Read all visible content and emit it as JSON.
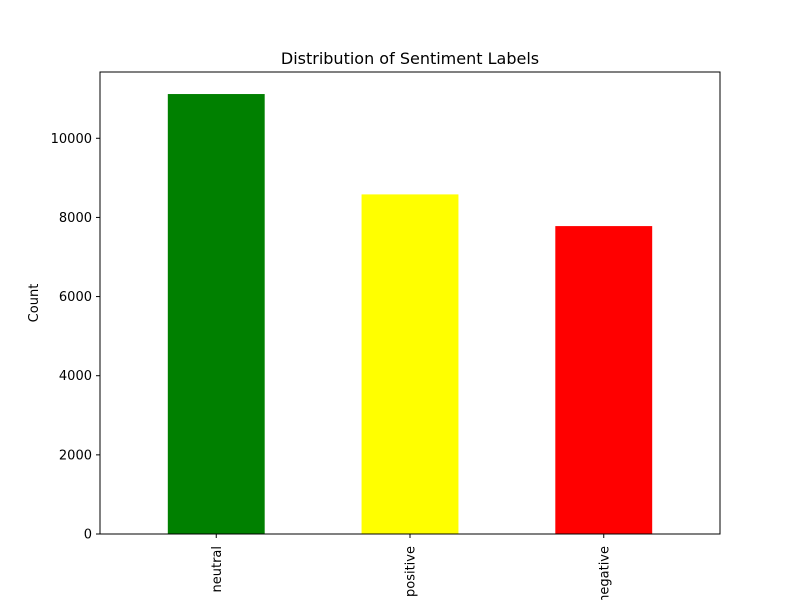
{
  "chart_data": {
    "type": "bar",
    "title": "Distribution of Sentiment Labels",
    "xlabel": "",
    "ylabel": "Count",
    "categories": [
      "neutral",
      "positive",
      "negative"
    ],
    "values": [
      11118,
      8582,
      7781
    ],
    "colors": [
      "#008000",
      "#ffff00",
      "#ff0000"
    ],
    "ylim": [
      0,
      11675
    ],
    "yticks": [
      0,
      2000,
      4000,
      6000,
      8000,
      10000
    ],
    "ytick_labels": [
      "0",
      "2000",
      "4000",
      "6000",
      "8000",
      "10000"
    ],
    "grid": false,
    "legend": "none"
  }
}
